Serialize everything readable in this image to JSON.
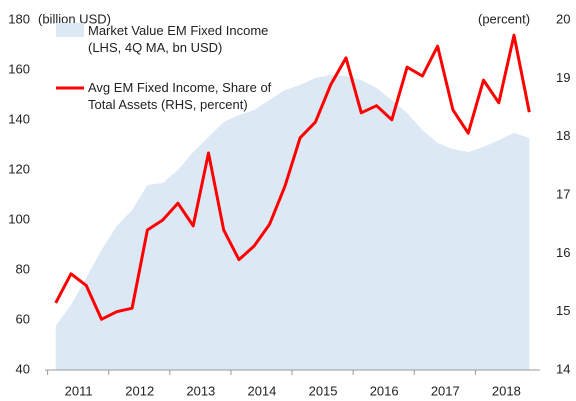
{
  "chart_data": {
    "type": "area_line",
    "y_label": "(billion USD)",
    "y2_label": "(percent)",
    "x": [
      2011.125,
      2011.375,
      2011.625,
      2011.875,
      2012.125,
      2012.375,
      2012.625,
      2012.875,
      2013.125,
      2013.375,
      2013.625,
      2013.875,
      2014.125,
      2014.375,
      2014.625,
      2014.875,
      2015.125,
      2015.375,
      2015.625,
      2015.875,
      2016.125,
      2016.375,
      2016.625,
      2016.875,
      2017.125,
      2017.375,
      2017.625,
      2017.875,
      2018.125,
      2018.375,
      2018.625,
      2018.875
    ],
    "xlim": [
      2010.95,
      2019.05
    ],
    "xticks": [
      {
        "value": 2011.5,
        "label": "2011"
      },
      {
        "value": 2012.5,
        "label": "2012"
      },
      {
        "value": 2013.5,
        "label": "2013"
      },
      {
        "value": 2014.5,
        "label": "2014"
      },
      {
        "value": 2015.5,
        "label": "2015"
      },
      {
        "value": 2016.5,
        "label": "2016"
      },
      {
        "value": 2017.5,
        "label": "2017"
      },
      {
        "value": 2018.5,
        "label": "2018"
      }
    ],
    "ylim": [
      40,
      180
    ],
    "yticks": [
      40,
      60,
      80,
      100,
      120,
      140,
      160,
      180
    ],
    "y2lim": [
      14,
      20
    ],
    "y2ticks": [
      14,
      15,
      16,
      17,
      18,
      19,
      20
    ],
    "series": [
      {
        "name": "Market Value EM Fixed Income (LHS,  4Q MA, bn USD)",
        "kind": "area",
        "color": "#dce9f5",
        "values": [
          57.6,
          66,
          76.8,
          88,
          97.6,
          104,
          114,
          114.8,
          120,
          127.2,
          133.2,
          139.2,
          142,
          144,
          148,
          152,
          154,
          156.8,
          158,
          157.6,
          156,
          152.8,
          148,
          142.8,
          136,
          130.8,
          128.4,
          127.2,
          129.2,
          132,
          134.8,
          132.8
        ]
      },
      {
        "name": "Avg EM Fixed Income, Share of Total Assets (RHS, percent)",
        "kind": "line",
        "axis": "y2",
        "color": "#ff0000",
        "values": [
          15.15,
          15.65,
          15.45,
          14.87,
          15.0,
          15.06,
          16.4,
          16.57,
          16.86,
          16.47,
          17.72,
          16.4,
          15.89,
          16.13,
          16.5,
          17.15,
          17.98,
          18.25,
          18.89,
          19.35,
          18.41,
          18.53,
          18.29,
          19.19,
          19.04,
          19.55,
          18.46,
          18.06,
          18.97,
          18.58,
          19.74,
          18.42
        ]
      }
    ]
  }
}
